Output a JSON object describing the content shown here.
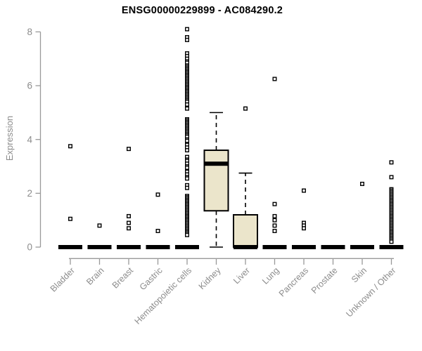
{
  "title": "ENSG00000229899 - AC084290.2",
  "y_axis": {
    "label": "Expression",
    "ticks": [
      0,
      2,
      4,
      6,
      8
    ]
  },
  "colors": {
    "box_fill": "#ebe5cb",
    "box_stroke": "#000000",
    "median": "#000000",
    "outlier_stroke": "#000000",
    "axis_line": "#999999",
    "axis_text": "#8c8c8c",
    "title_text": "#000000"
  },
  "chart_data": {
    "type": "boxplot",
    "title": "ENSG00000229899 - AC084290.2",
    "xlabel": "",
    "ylabel": "Expression",
    "ylim": [
      0,
      8.3
    ],
    "yticks": [
      0,
      2,
      4,
      6,
      8
    ],
    "grid": false,
    "legend": false,
    "categories": [
      "Bladder",
      "Brain",
      "Breast",
      "Gastric",
      "Hematopoietic cells",
      "Kidney",
      "Liver",
      "Lung",
      "Pancreas",
      "Prostate",
      "Skin",
      "Unknown / Other"
    ],
    "series": [
      {
        "category": "Bladder",
        "whisker_low": 0,
        "q1": 0,
        "median": 0,
        "q3": 0,
        "whisker_high": 0,
        "outliers": [
          3.75,
          1.05
        ]
      },
      {
        "category": "Brain",
        "whisker_low": 0,
        "q1": 0,
        "median": 0,
        "q3": 0,
        "whisker_high": 0,
        "outliers": [
          0.8
        ]
      },
      {
        "category": "Breast",
        "whisker_low": 0,
        "q1": 0,
        "median": 0,
        "q3": 0,
        "whisker_high": 0,
        "outliers": [
          3.65,
          1.15,
          0.9,
          0.7
        ]
      },
      {
        "category": "Gastric",
        "whisker_low": 0,
        "q1": 0,
        "median": 0,
        "q3": 0,
        "whisker_high": 0,
        "outliers": [
          1.95,
          0.6
        ]
      },
      {
        "category": "Hematopoietic cells",
        "whisker_low": 0,
        "q1": 0,
        "median": 0,
        "q3": 0,
        "whisker_high": 0,
        "outliers": [
          8.1,
          7.8,
          7.7,
          7.2,
          7.1,
          7.0,
          6.9,
          6.85,
          6.75,
          6.7,
          6.65,
          6.6,
          6.55,
          6.5,
          6.45,
          6.4,
          6.35,
          6.3,
          6.25,
          6.2,
          6.15,
          6.1,
          6.05,
          6.0,
          5.95,
          5.9,
          5.85,
          5.8,
          5.75,
          5.7,
          5.65,
          5.6,
          5.55,
          5.5,
          5.45,
          5.4,
          5.3,
          5.15,
          4.75,
          4.7,
          4.65,
          4.6,
          4.55,
          4.5,
          4.45,
          4.4,
          4.35,
          4.3,
          4.25,
          4.2,
          4.15,
          4.1,
          4.0,
          3.95,
          3.8,
          3.7,
          3.6,
          3.35,
          3.25,
          3.2,
          3.1,
          3.0,
          2.95,
          2.8,
          2.7,
          2.6,
          2.55,
          2.3,
          2.2,
          1.9,
          1.85,
          1.8,
          1.75,
          1.7,
          1.65,
          1.6,
          1.55,
          1.5,
          1.45,
          1.4,
          1.35,
          1.3,
          1.25,
          1.2,
          1.15,
          1.1,
          1.05,
          1.0,
          0.95,
          0.9,
          0.85,
          0.8,
          0.75,
          0.7,
          0.65,
          0.6,
          0.55,
          0.5,
          0.45
        ]
      },
      {
        "category": "Kidney",
        "whisker_low": 0,
        "q1": 1.35,
        "median": 3.1,
        "q3": 3.6,
        "whisker_high": 5.0,
        "outliers": []
      },
      {
        "category": "Liver",
        "whisker_low": 0,
        "q1": 0,
        "median": 0,
        "q3": 1.2,
        "whisker_high": 2.75,
        "outliers": [
          5.15
        ]
      },
      {
        "category": "Lung",
        "whisker_low": 0,
        "q1": 0,
        "median": 0,
        "q3": 0,
        "whisker_high": 0,
        "outliers": [
          6.25,
          1.6,
          1.15,
          1.0,
          0.8,
          0.6
        ]
      },
      {
        "category": "Pancreas",
        "whisker_low": 0,
        "q1": 0,
        "median": 0,
        "q3": 0,
        "whisker_high": 0,
        "outliers": [
          2.1,
          0.9,
          0.8,
          0.7
        ]
      },
      {
        "category": "Prostate",
        "whisker_low": 0,
        "q1": 0,
        "median": 0,
        "q3": 0,
        "whisker_high": 0,
        "outliers": []
      },
      {
        "category": "Skin",
        "whisker_low": 0,
        "q1": 0,
        "median": 0,
        "q3": 0,
        "whisker_high": 0,
        "outliers": [
          2.35
        ]
      },
      {
        "category": "Unknown / Other",
        "whisker_low": 0,
        "q1": 0,
        "median": 0,
        "q3": 0,
        "whisker_high": 0,
        "outliers": [
          3.15,
          2.6,
          2.15,
          2.1,
          2.05,
          2.0,
          1.95,
          1.9,
          1.85,
          1.8,
          1.75,
          1.7,
          1.65,
          1.6,
          1.55,
          1.5,
          1.45,
          1.4,
          1.35,
          1.3,
          1.25,
          1.2,
          1.15,
          1.1,
          1.05,
          1.0,
          0.95,
          0.9,
          0.85,
          0.8,
          0.75,
          0.7,
          0.65,
          0.6,
          0.55,
          0.5,
          0.45,
          0.4,
          0.35,
          0.3,
          0.25,
          0.2
        ]
      }
    ]
  }
}
